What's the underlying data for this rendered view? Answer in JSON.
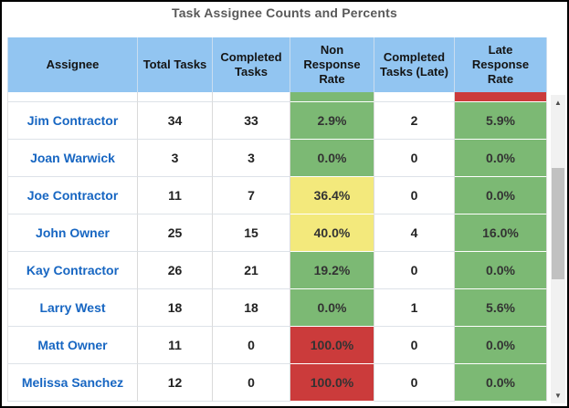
{
  "title": "Task Assignee Counts and Percents",
  "colors": {
    "header_bg": "#92C5F1",
    "green": "#7CB974",
    "yellow": "#F3E97C",
    "red": "#CB3B3B",
    "assignee_link_blue": "#1766C2",
    "title_gray": "#595959"
  },
  "table": {
    "columns": [
      {
        "label": "Assignee"
      },
      {
        "label": "Total Tasks"
      },
      {
        "label": "Completed Tasks"
      },
      {
        "label": "Non Response Rate"
      },
      {
        "label": "Completed Tasks (Late)"
      },
      {
        "label": "Late Response Rate"
      }
    ],
    "partial_top_row": {
      "non_response_color": "green",
      "late_response_color": "red"
    },
    "rows": [
      {
        "assignee": "Jim Contractor",
        "total": "34",
        "completed": "33",
        "non_response_rate": {
          "value": "2.9%",
          "color": "green"
        },
        "completed_late": "2",
        "late_response_rate": {
          "value": "5.9%",
          "color": "green"
        }
      },
      {
        "assignee": "Joan Warwick",
        "total": "3",
        "completed": "3",
        "non_response_rate": {
          "value": "0.0%",
          "color": "green"
        },
        "completed_late": "0",
        "late_response_rate": {
          "value": "0.0%",
          "color": "green"
        }
      },
      {
        "assignee": "Joe Contractor",
        "total": "11",
        "completed": "7",
        "non_response_rate": {
          "value": "36.4%",
          "color": "yellow"
        },
        "completed_late": "0",
        "late_response_rate": {
          "value": "0.0%",
          "color": "green"
        }
      },
      {
        "assignee": "John Owner",
        "total": "25",
        "completed": "15",
        "non_response_rate": {
          "value": "40.0%",
          "color": "yellow"
        },
        "completed_late": "4",
        "late_response_rate": {
          "value": "16.0%",
          "color": "green"
        }
      },
      {
        "assignee": "Kay Contractor",
        "total": "26",
        "completed": "21",
        "non_response_rate": {
          "value": "19.2%",
          "color": "green"
        },
        "completed_late": "0",
        "late_response_rate": {
          "value": "0.0%",
          "color": "green"
        }
      },
      {
        "assignee": "Larry West",
        "total": "18",
        "completed": "18",
        "non_response_rate": {
          "value": "0.0%",
          "color": "green"
        },
        "completed_late": "1",
        "late_response_rate": {
          "value": "5.6%",
          "color": "green"
        }
      },
      {
        "assignee": "Matt Owner",
        "total": "11",
        "completed": "0",
        "non_response_rate": {
          "value": "100.0%",
          "color": "red"
        },
        "completed_late": "0",
        "late_response_rate": {
          "value": "0.0%",
          "color": "green"
        }
      },
      {
        "assignee": "Melissa Sanchez",
        "total": "12",
        "completed": "0",
        "non_response_rate": {
          "value": "100.0%",
          "color": "red"
        },
        "completed_late": "0",
        "late_response_rate": {
          "value": "0.0%",
          "color": "green"
        }
      }
    ]
  },
  "scrollbar": {
    "up_icon": "▲",
    "down_icon": "▼"
  }
}
